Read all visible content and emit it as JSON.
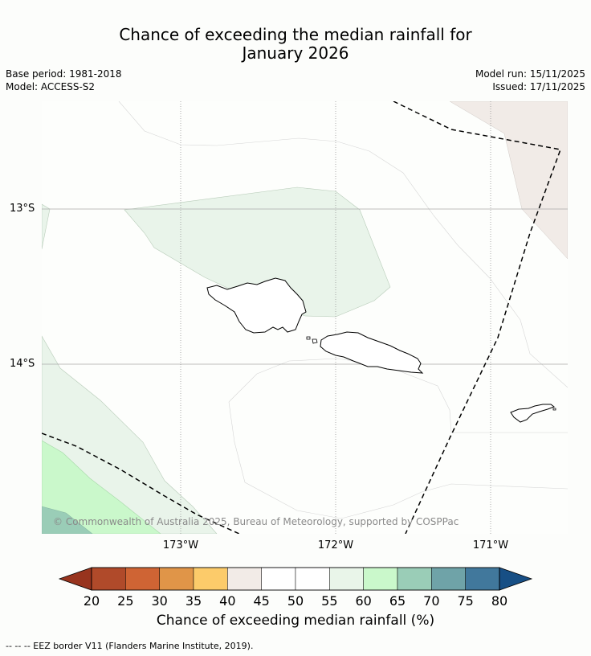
{
  "header": {
    "title_line1": "Chance of exceeding the median rainfall for",
    "title_line2": "January 2026",
    "base_period": "Base period: 1981-2018",
    "model": "Model: ACCESS-S2",
    "model_run": "Model run: 15/11/2025",
    "issued": "Issued: 17/11/2025"
  },
  "map": {
    "lat_labels": [
      "13°S",
      "14°S"
    ],
    "lon_labels": [
      "173°W",
      "172°W",
      "171°W"
    ],
    "copyright": "© Commonwealth of Australia 2025, Bureau of Meteorology, supported by COSPPac"
  },
  "colorbar": {
    "ticks": [
      "20",
      "25",
      "30",
      "35",
      "40",
      "45",
      "50",
      "55",
      "60",
      "65",
      "70",
      "75",
      "80"
    ],
    "colors": [
      "#b04a2a",
      "#cf6434",
      "#e09548",
      "#fccb6a",
      "#f2ebe7",
      "#ffffff",
      "#ffffff",
      "#e9f5e9",
      "#caf8cb",
      "#9acdb7",
      "#6fa3a8",
      "#41789c"
    ],
    "under_color": "#98341e",
    "over_color": "#174f85",
    "label": "Chance of exceeding median rainfall (%)"
  },
  "footnote": "-- -- -- EEZ border V11 (Flanders Marine Institute, 2019)."
}
